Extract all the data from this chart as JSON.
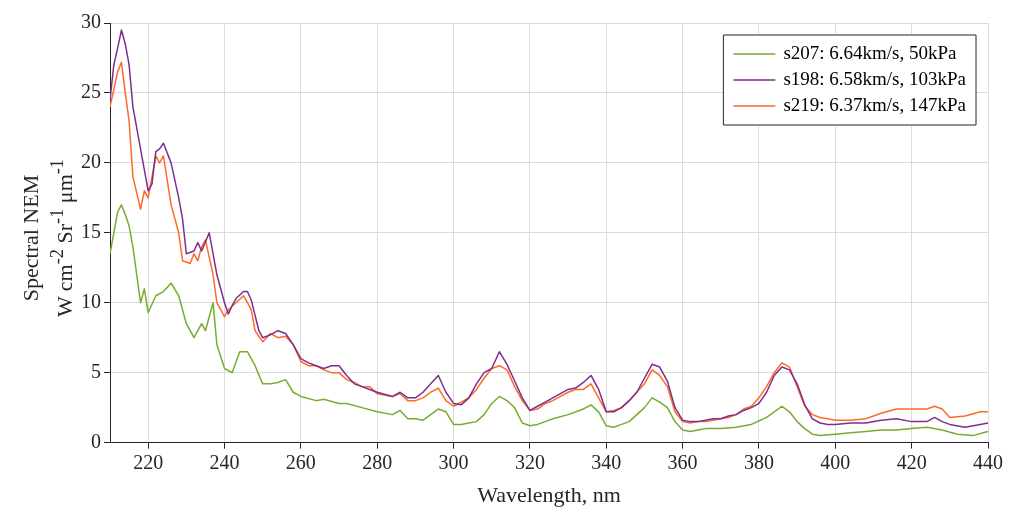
{
  "chart_data": {
    "type": "line",
    "xlabel": "Wavelength, nm",
    "ylabel": "Spectral NEM\nW cm$^{-2}$ Sr$^{-1}$ μm$^{-1}$",
    "xlim": [
      210,
      440
    ],
    "xticks": [
      220,
      240,
      260,
      280,
      300,
      320,
      340,
      360,
      380,
      400,
      420,
      440
    ],
    "ylim": [
      0,
      30
    ],
    "yticks": [
      0,
      5,
      10,
      15,
      20,
      25,
      30
    ],
    "grid": true,
    "legend": "top right",
    "marker": "none",
    "line_style": "solid",
    "series": [
      {
        "name": "s207: 6.64km/s, 50kPa",
        "color": "#77ac30",
        "x": [
          210,
          211,
          212,
          213,
          214,
          215,
          216,
          217,
          218,
          219,
          220,
          222,
          224,
          226,
          228,
          230,
          232,
          234,
          235,
          236,
          237,
          238,
          240,
          242,
          244,
          246,
          248,
          250,
          252,
          254,
          256,
          258,
          260,
          264,
          266,
          270,
          272,
          276,
          280,
          284,
          286,
          288,
          290,
          292,
          294,
          296,
          298,
          300,
          302,
          304,
          306,
          308,
          310,
          312,
          314,
          316,
          318,
          320,
          322,
          324,
          326,
          330,
          334,
          336,
          338,
          340,
          342,
          344,
          346,
          348,
          350,
          352,
          354,
          356,
          358,
          360,
          362,
          364,
          366,
          368,
          370,
          374,
          378,
          382,
          384,
          386,
          388,
          390,
          392,
          394,
          396,
          400,
          404,
          408,
          412,
          416,
          420,
          424,
          428,
          432,
          436,
          440
        ],
        "values": [
          13.5,
          15,
          16.5,
          17,
          16.3,
          15.5,
          14,
          12,
          10,
          11,
          9.3,
          10.5,
          10.8,
          11.4,
          10.5,
          8.5,
          7.5,
          8.5,
          8,
          9,
          10,
          7,
          5.3,
          5,
          6.5,
          6.5,
          5.5,
          4.2,
          4.2,
          4.3,
          4.5,
          3.6,
          3.3,
          3,
          3.1,
          2.8,
          2.8,
          2.5,
          2.2,
          2,
          2.3,
          1.7,
          1.7,
          1.6,
          2,
          2.4,
          2.2,
          1.3,
          1.3,
          1.4,
          1.5,
          2,
          2.8,
          3.3,
          3,
          2.5,
          1.4,
          1.2,
          1.3,
          1.5,
          1.7,
          2,
          2.4,
          2.7,
          2.2,
          1.2,
          1.1,
          1.3,
          1.5,
          2,
          2.5,
          3.2,
          2.9,
          2.5,
          1.5,
          0.9,
          0.8,
          0.9,
          1,
          1,
          1,
          1.1,
          1.3,
          1.8,
          2.2,
          2.6,
          2.2,
          1.5,
          1,
          0.6,
          0.5,
          0.6,
          0.7,
          0.8,
          0.9,
          0.9,
          1,
          1.1,
          0.9,
          0.6,
          0.5,
          0.8
        ]
      },
      {
        "name": "s198: 6.58km/s, 103kPa",
        "color": "#7e2f8e",
        "x": [
          210,
          211,
          212,
          213,
          214,
          215,
          216,
          218,
          220,
          221,
          222,
          223,
          224,
          226,
          228,
          229,
          230,
          232,
          233,
          234,
          236,
          238,
          240,
          241,
          242,
          243,
          245,
          246,
          247,
          249,
          250,
          252,
          254,
          256,
          258,
          260,
          262,
          264,
          266,
          268,
          270,
          272,
          274,
          276,
          278,
          280,
          284,
          286,
          288,
          290,
          292,
          294,
          296,
          298,
          300,
          302,
          304,
          306,
          308,
          310,
          312,
          314,
          316,
          318,
          320,
          322,
          324,
          326,
          328,
          330,
          332,
          334,
          336,
          338,
          340,
          342,
          344,
          346,
          348,
          350,
          352,
          354,
          356,
          358,
          360,
          362,
          364,
          366,
          368,
          370,
          372,
          374,
          376,
          378,
          380,
          382,
          384,
          386,
          388,
          390,
          392,
          394,
          396,
          398,
          400,
          404,
          408,
          412,
          416,
          420,
          424,
          426,
          428,
          430,
          434,
          438,
          440
        ],
        "values": [
          24.5,
          27,
          28.2,
          29.5,
          28.5,
          27,
          24,
          21,
          18,
          18.5,
          20.8,
          21,
          21.4,
          20,
          17.5,
          16,
          13.5,
          13.7,
          14.3,
          13.7,
          15,
          12,
          10,
          9.2,
          9.8,
          10.3,
          10.8,
          10.8,
          10.2,
          8,
          7.5,
          7.7,
          8,
          7.8,
          7,
          6,
          5.7,
          5.5,
          5.3,
          5.5,
          5.5,
          4.8,
          4.2,
          4,
          3.8,
          3.6,
          3.3,
          3.6,
          3.2,
          3.2,
          3.6,
          4.2,
          4.8,
          3.6,
          2.8,
          2.7,
          3.2,
          4.2,
          5,
          5.3,
          6.5,
          5.6,
          4.4,
          3.2,
          2.3,
          2.6,
          2.9,
          3.2,
          3.5,
          3.8,
          3.9,
          4.3,
          4.8,
          3.8,
          2.2,
          2.2,
          2.5,
          3,
          3.6,
          4.6,
          5.6,
          5.4,
          4.4,
          2.5,
          1.6,
          1.5,
          1.5,
          1.6,
          1.7,
          1.7,
          1.9,
          2,
          2.3,
          2.5,
          2.8,
          3.6,
          4.8,
          5.4,
          5.2,
          4.2,
          2.7,
          1.7,
          1.4,
          1.3,
          1.3,
          1.4,
          1.4,
          1.6,
          1.7,
          1.5,
          1.5,
          1.8,
          1.5,
          1.3,
          1.1,
          1.3,
          1.4
        ]
      },
      {
        "name": "s219: 6.37km/s, 147kPa",
        "color": "#ff6929",
        "x": [
          210,
          212,
          213,
          214,
          215,
          216,
          218,
          219,
          220,
          222,
          223,
          224,
          226,
          228,
          229,
          231,
          232,
          233,
          234,
          235,
          237,
          238,
          240,
          241,
          243,
          245,
          246,
          247,
          248,
          250,
          252,
          254,
          256,
          258,
          260,
          262,
          264,
          266,
          268,
          270,
          272,
          274,
          276,
          278,
          280,
          284,
          286,
          288,
          290,
          292,
          294,
          296,
          298,
          300,
          302,
          304,
          306,
          308,
          310,
          312,
          314,
          316,
          318,
          320,
          322,
          324,
          326,
          328,
          330,
          332,
          334,
          336,
          338,
          340,
          342,
          344,
          346,
          348,
          350,
          352,
          354,
          356,
          358,
          360,
          362,
          364,
          366,
          368,
          370,
          372,
          374,
          376,
          378,
          380,
          382,
          384,
          386,
          388,
          390,
          392,
          394,
          396,
          398,
          400,
          404,
          408,
          412,
          416,
          420,
          424,
          426,
          428,
          430,
          434,
          438,
          440
        ],
        "values": [
          24,
          26.5,
          27.2,
          25,
          23,
          19,
          16.7,
          18,
          17.5,
          20.5,
          20,
          20.5,
          17,
          15,
          13,
          12.8,
          13.5,
          13,
          14,
          14.5,
          12,
          10,
          9,
          9.5,
          10,
          10.5,
          10,
          9.5,
          8,
          7.2,
          7.8,
          7.5,
          7.6,
          7,
          5.8,
          5.5,
          5.5,
          5.2,
          5,
          5,
          4.5,
          4.3,
          4,
          4,
          3.5,
          3.3,
          3.5,
          3,
          3,
          3.2,
          3.6,
          3.9,
          3,
          2.6,
          2.9,
          3.2,
          3.8,
          4.6,
          5.3,
          5.5,
          5.2,
          4,
          3,
          2.3,
          2.4,
          2.8,
          3,
          3.3,
          3.6,
          3.8,
          3.8,
          4.2,
          3.2,
          2.2,
          2.3,
          2.5,
          3,
          3.6,
          4.2,
          5.2,
          4.8,
          4,
          2.2,
          1.5,
          1.4,
          1.5,
          1.5,
          1.6,
          1.7,
          1.8,
          2,
          2.4,
          2.6,
          3.2,
          4,
          5,
          5.7,
          5.4,
          4,
          2.6,
          2,
          1.8,
          1.7,
          1.6,
          1.6,
          1.7,
          2.1,
          2.4,
          2.4,
          2.4,
          2.6,
          2.4,
          1.8,
          1.9,
          2.2,
          2.2
        ]
      }
    ]
  }
}
